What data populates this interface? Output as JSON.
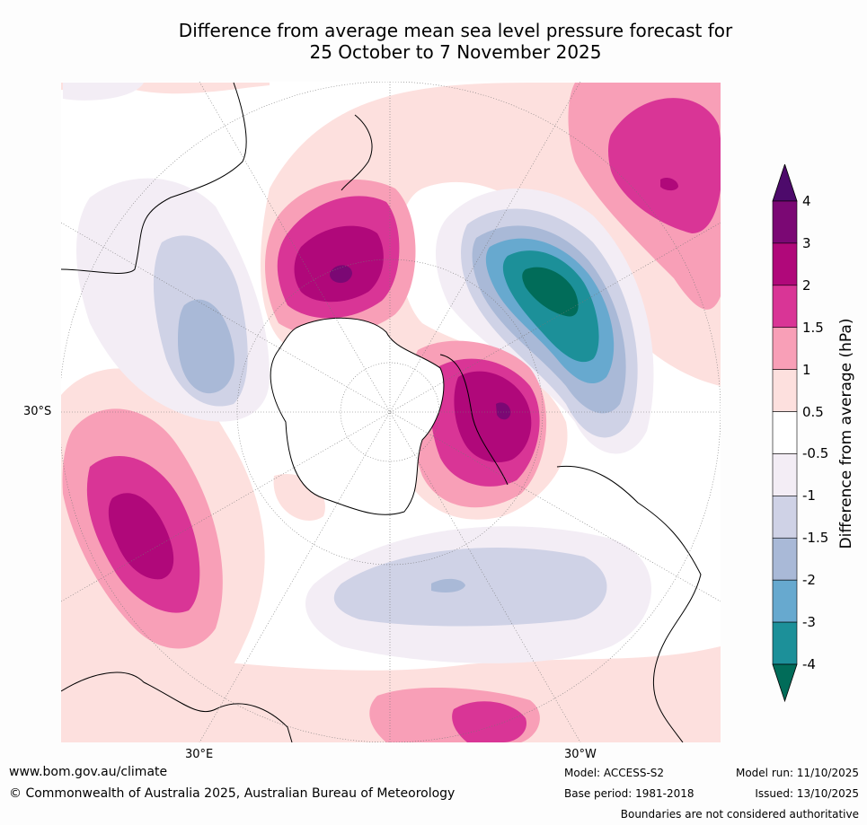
{
  "title": {
    "line1": "Difference from average mean sea level pressure forecast for",
    "line2": "25 October to 7 November 2025"
  },
  "map": {
    "projection": "south-polar stereographic",
    "lat_label": "30°S",
    "lon_labels": [
      "30°E",
      "30°W"
    ]
  },
  "colorbar": {
    "label": "Difference from average (hPa)",
    "ticks": [
      "4",
      "3",
      "2",
      "1.5",
      "1",
      "0.5",
      "-0.5",
      "-1",
      "-1.5",
      "-2",
      "-3",
      "-4"
    ],
    "colors": [
      "#4d0a6b",
      "#7b0874",
      "#b0087a",
      "#d93596",
      "#f89fb7",
      "#fde0de",
      "#ffffff",
      "#f3edf5",
      "#cfd2e6",
      "#a9b9d7",
      "#67a9cf",
      "#1c9099",
      "#016c59"
    ]
  },
  "footer": {
    "website": "www.bom.gov.au/climate",
    "copyright": "© Commonwealth of Australia 2025, Australian Bureau of Meteorology",
    "model": "Model: ACCESS-S2",
    "base_period": "Base period: 1981-2018",
    "model_run": "Model run: 11/10/2025",
    "issued": "Issued: 13/10/2025",
    "disclaimer": "Boundaries are not considered authoritative"
  }
}
